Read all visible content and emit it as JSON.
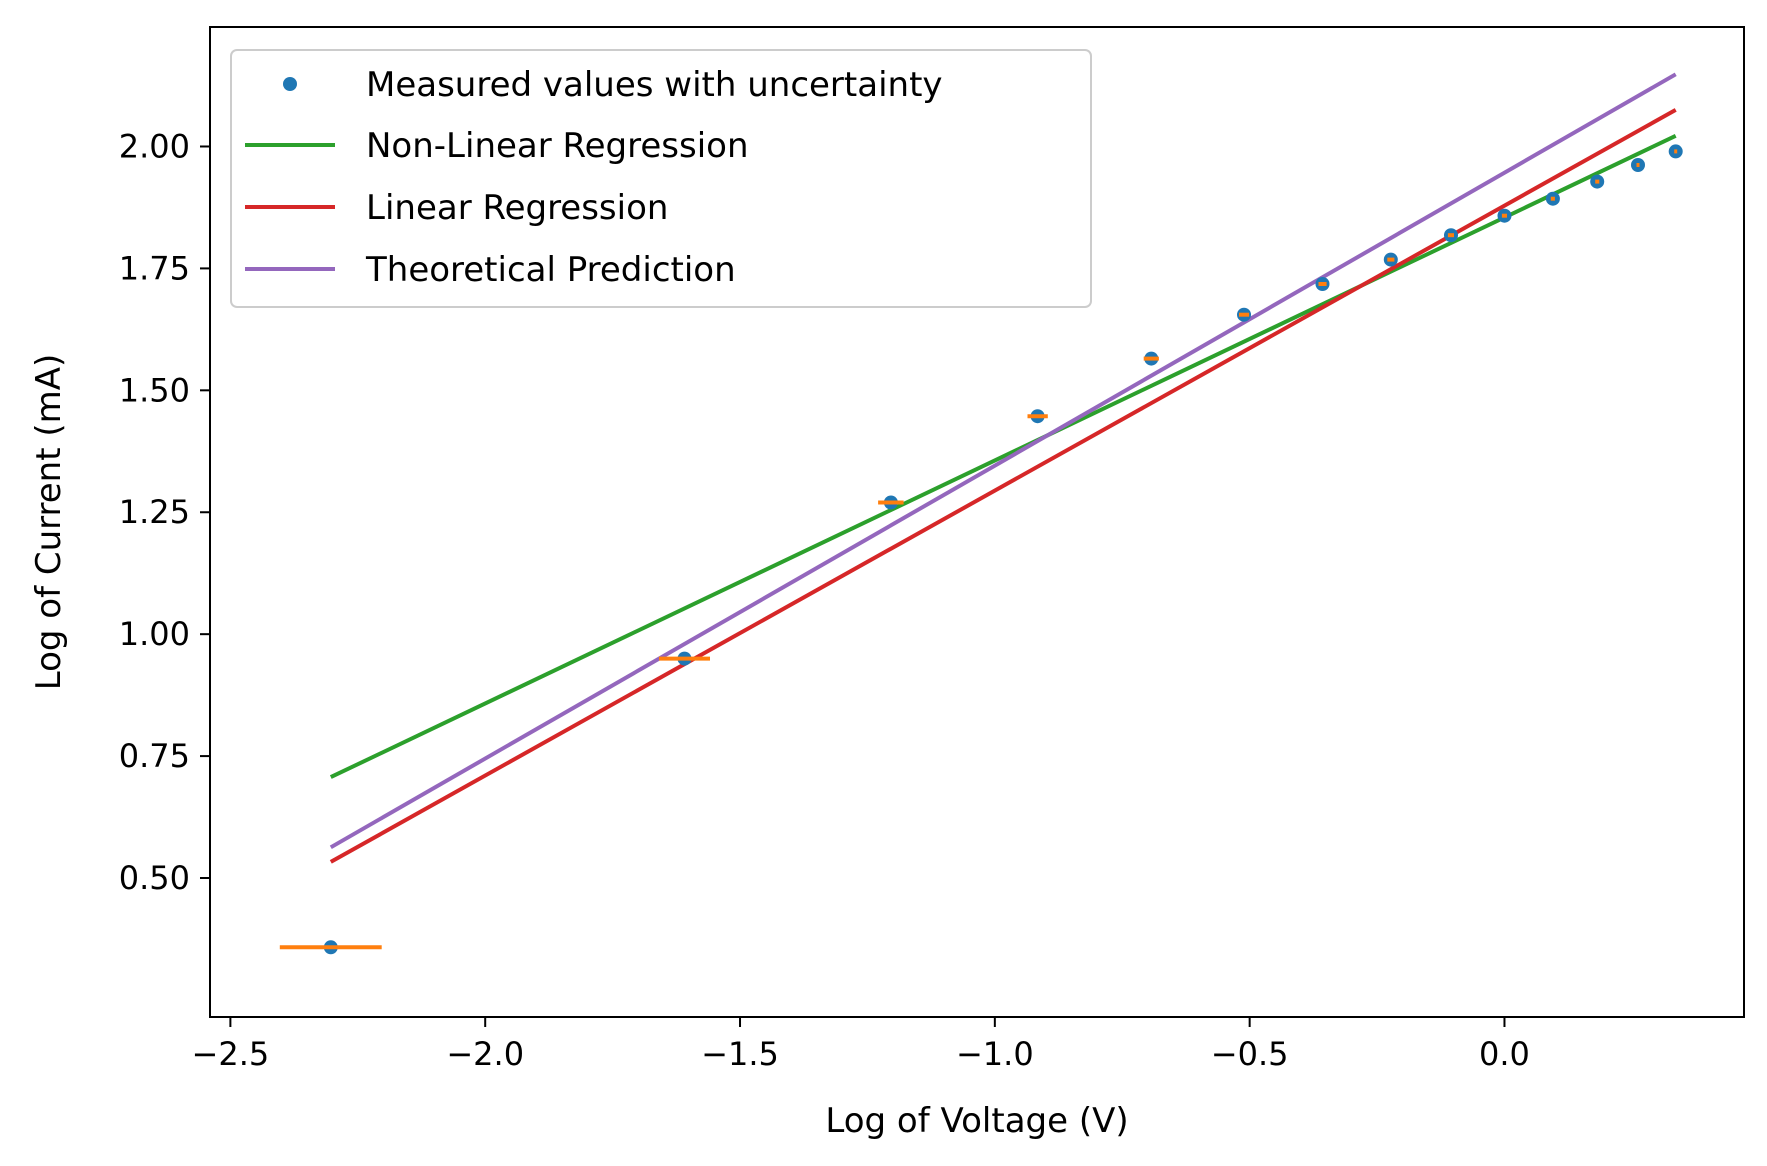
{
  "chart_data": {
    "type": "line",
    "title": "",
    "xlabel": "Log of Voltage (V)",
    "ylabel": "Log of Current (mA)",
    "xlim": [
      -2.54,
      0.47
    ],
    "ylim": [
      0.215,
      2.245
    ],
    "x_ticks": [
      -2.5,
      -2.0,
      -1.5,
      -1.0,
      -0.5,
      0.0
    ],
    "x_tick_labels": [
      "−2.5",
      "−2.0",
      "−1.5",
      "−1.0",
      "−0.5",
      "0.0"
    ],
    "y_ticks": [
      0.5,
      0.75,
      1.0,
      1.25,
      1.5,
      1.75,
      2.0
    ],
    "y_tick_labels": [
      "0.50",
      "0.75",
      "1.00",
      "1.25",
      "1.50",
      "1.75",
      "2.00"
    ],
    "grid": false,
    "legend_position": "top-left",
    "measured": {
      "name": "Measured values with uncertainty",
      "color": "#1f77b4",
      "errorbar_color": "#ff7f0e",
      "x": [
        -2.303,
        -1.609,
        -1.204,
        -0.916,
        -0.693,
        -0.511,
        -0.357,
        -0.223,
        -0.105,
        0.0,
        0.095,
        0.182,
        0.262,
        0.336
      ],
      "y": [
        0.358,
        0.95,
        1.27,
        1.447,
        1.565,
        1.655,
        1.718,
        1.768,
        1.818,
        1.858,
        1.893,
        1.928,
        1.962,
        1.99
      ],
      "xerr": [
        0.1,
        0.05,
        0.025,
        0.02,
        0.015,
        0.01,
        0.008,
        0.007,
        0.006,
        0.005,
        0.004,
        0.004,
        0.003,
        0.003
      ]
    },
    "series": [
      {
        "name": "Non-Linear Regression",
        "color": "#2ca02c",
        "x": [
          -2.303,
          0.336
        ],
        "y": [
          0.707,
          2.022
        ]
      },
      {
        "name": "Linear Regression",
        "color": "#d62728",
        "x": [
          -2.303,
          0.336
        ],
        "y": [
          0.533,
          2.075
        ]
      },
      {
        "name": "Theoretical Prediction",
        "color": "#9467bd",
        "x": [
          -2.303,
          0.336
        ],
        "y": [
          0.563,
          2.148
        ]
      }
    ]
  }
}
